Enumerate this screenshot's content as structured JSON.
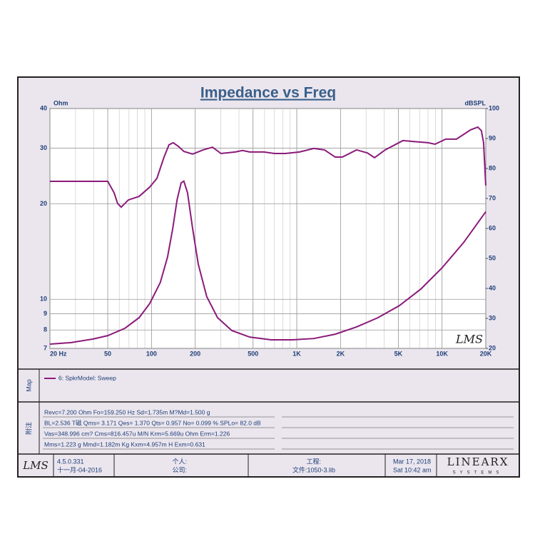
{
  "chart_data": {
    "type": "line",
    "title": "Impedance vs Freq",
    "y_label": "Ohm",
    "y2_label": "dBSPL",
    "xscale": "log",
    "yscale": "log",
    "grid": true,
    "watermark": "LMS",
    "xlim": [
      20,
      20000
    ],
    "xticks": [
      {
        "value": 20,
        "label": "20 Hz"
      },
      50,
      100,
      200,
      500,
      {
        "value": 1000,
        "label": "1K"
      },
      {
        "value": 2000,
        "label": "2K"
      },
      {
        "value": 5000,
        "label": "5K"
      },
      {
        "value": 10000,
        "label": "10K"
      },
      {
        "value": 20000,
        "label": "20K"
      }
    ],
    "ylim": [
      7,
      40
    ],
    "yticks": [
      40,
      30,
      20,
      10,
      9,
      8,
      7
    ],
    "y2lim": [
      20,
      100
    ],
    "y2ticks": [
      100,
      90,
      80,
      70,
      60,
      50,
      40,
      30,
      20
    ],
    "series": [
      {
        "name": "6: SpkrModel: Sweep",
        "color": "#8b1a7a",
        "x": [
          20,
          28,
          39.4,
          50,
          65.6,
          82.2,
          97.3,
          115,
          129,
          140,
          150,
          160,
          167,
          177,
          192,
          210,
          240,
          285,
          357,
          474,
          665,
          934,
          1310,
          1840,
          2580,
          3620,
          5080,
          7140,
          10020,
          14070,
          20000
        ],
        "values": [
          7.22,
          7.3,
          7.49,
          7.68,
          8.1,
          8.75,
          9.7,
          11.3,
          13.6,
          16.7,
          20.6,
          23.3,
          23.6,
          21.7,
          16.7,
          12.9,
          10.2,
          8.75,
          7.97,
          7.6,
          7.45,
          7.45,
          7.52,
          7.76,
          8.18,
          8.75,
          9.55,
          10.77,
          12.58,
          15.1,
          18.9
        ]
      },
      {
        "color": "#8b1a7a",
        "axis": "y2",
        "x": [
          20,
          50,
          55.3,
          58.5,
          61.9,
          69.3,
          82.2,
          97.3,
          109,
          122,
          132,
          141,
          153,
          167,
          192,
          227,
          263,
          301,
          378,
          423,
          474,
          594,
          703,
          834,
          1045,
          1310,
          1550,
          1840,
          2060,
          2580,
          3060,
          3430,
          4060,
          5380,
          6380,
          8000,
          8950,
          10600,
          12570,
          15750,
          17630,
          18660,
          19310,
          20000
        ],
        "values": [
          75.7,
          75.7,
          71.9,
          68.3,
          67.1,
          69.5,
          70.7,
          73.8,
          76.7,
          83.8,
          87.9,
          88.6,
          87.4,
          85.7,
          84.8,
          86.2,
          87.1,
          85,
          85.5,
          86,
          85.5,
          85.5,
          85,
          85,
          85.5,
          86.7,
          86.2,
          83.8,
          83.8,
          86.2,
          85.2,
          83.6,
          86.2,
          89.3,
          89,
          88.6,
          88.1,
          89.8,
          89.8,
          92.9,
          93.8,
          92.6,
          88.6,
          74.3
        ]
      }
    ]
  },
  "legend_panel": {
    "label": "Map"
  },
  "notes": {
    "label": "附注",
    "lines": [
      "Revc=7.200 Ohm  Fo=159.250 Hz  Sd=1.735m  M?Md=1.500 g",
      "BL=2.536 T磁  Qms= 3.171  Qes= 1.370  Qts= 0.957  No= 0.099 %  SPLo= 82.0 dB",
      "Vas=348.996 cm?  Cms=816.457u M/N  Krm=5.669u Ohm  Erm=1.226",
      "Mms=1.223 g  Mmd=1.182m Kg  Kxm=4.957m H  Exm=0.631"
    ]
  },
  "footer": {
    "logo": "LMS",
    "version": "4.5.0.331",
    "date_built": "十一月-04-2016",
    "personal": "个人:",
    "company": "公司:",
    "project": "工程:",
    "file": "文件:1050-3.lib",
    "date": "Mar 17, 2018",
    "time": "Sat 10:42 am",
    "brand": "LINEARX",
    "brand_sub": "SYSTEMS"
  }
}
